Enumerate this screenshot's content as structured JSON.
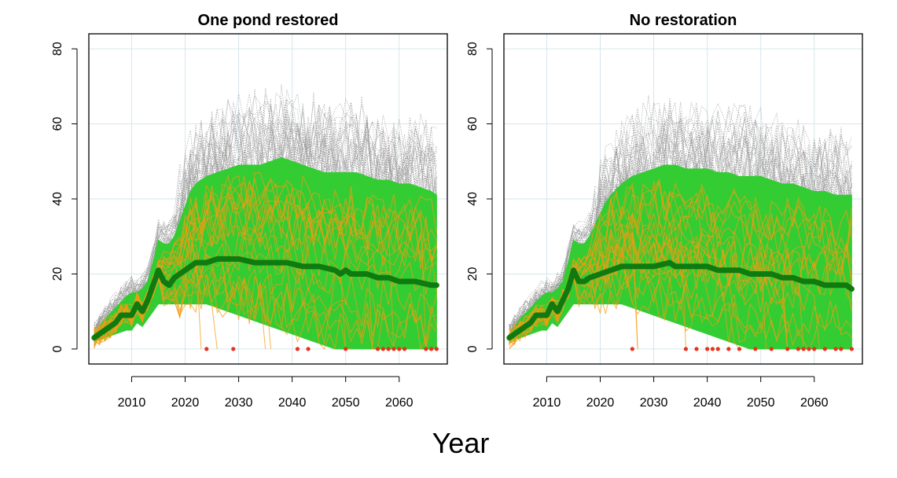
{
  "figure": {
    "xlabel": "Year",
    "colors": {
      "band": "#33cc33",
      "median": "#0f7a0f",
      "gray_traj": "#9a9a9a",
      "orange_traj": "#f39c12",
      "extinct_marker": "#e8321e",
      "grid": "#d6e6ec"
    }
  },
  "chart_data": [
    {
      "type": "line",
      "title": "One pond restored",
      "xlabel": "",
      "ylabel": "",
      "xlim": [
        2002,
        2069
      ],
      "ylim": [
        -4,
        84
      ],
      "x_ticks": [
        2010,
        2020,
        2030,
        2040,
        2050,
        2060
      ],
      "y_ticks": [
        0,
        20,
        40,
        60,
        80
      ],
      "grid": true,
      "median": {
        "x": [
          2003,
          2005,
          2007,
          2008,
          2009,
          2010,
          2011,
          2012,
          2013,
          2014,
          2015,
          2016,
          2017,
          2018,
          2020,
          2022,
          2024,
          2026,
          2028,
          2030,
          2033,
          2036,
          2039,
          2042,
          2045,
          2048,
          2049,
          2050,
          2051,
          2054,
          2056,
          2058,
          2060,
          2063,
          2066,
          2067
        ],
        "y": [
          3,
          5,
          7,
          9,
          9,
          9,
          12,
          10,
          13,
          17,
          21,
          18,
          17,
          19,
          21,
          23,
          23,
          24,
          24,
          24,
          23,
          23,
          23,
          22,
          22,
          21,
          20,
          21,
          20,
          20,
          19,
          19,
          18,
          18,
          17,
          17
        ]
      },
      "band": {
        "x": [
          2003,
          2005,
          2007,
          2009,
          2010,
          2011,
          2012,
          2013,
          2014,
          2015,
          2016,
          2017,
          2018,
          2019,
          2020,
          2021,
          2022,
          2024,
          2026,
          2028,
          2030,
          2032,
          2034,
          2036,
          2038,
          2040,
          2042,
          2044,
          2046,
          2048,
          2050,
          2052,
          2054,
          2056,
          2058,
          2060,
          2062,
          2064,
          2066,
          2067
        ],
        "upper": [
          4,
          8,
          11,
          14,
          15,
          15,
          16,
          18,
          23,
          29,
          28,
          28,
          30,
          34,
          38,
          42,
          44,
          46,
          47,
          48,
          49,
          49,
          49,
          50,
          51,
          50,
          49,
          48,
          47,
          47,
          47,
          47,
          46,
          45,
          45,
          44,
          44,
          43,
          42,
          41
        ],
        "lower": [
          2,
          3,
          4,
          5,
          5,
          7,
          6,
          8,
          10,
          12,
          12,
          12,
          12,
          12,
          12,
          12,
          12,
          12,
          11,
          10,
          9,
          8,
          7,
          6,
          5,
          4,
          3,
          2,
          1,
          0,
          0,
          0,
          0,
          0,
          0,
          0,
          0,
          0,
          0,
          0
        ]
      },
      "extinctions": [
        2024,
        2029,
        2041,
        2043,
        2050,
        2056,
        2057,
        2058,
        2059,
        2060,
        2061,
        2065,
        2066,
        2067
      ]
    },
    {
      "type": "line",
      "title": "No restoration",
      "xlabel": "",
      "ylabel": "",
      "xlim": [
        2002,
        2069
      ],
      "ylim": [
        -4,
        84
      ],
      "x_ticks": [
        2010,
        2020,
        2030,
        2040,
        2050,
        2060
      ],
      "y_ticks": [
        0,
        20,
        40,
        60,
        80
      ],
      "grid": true,
      "median": {
        "x": [
          2003,
          2005,
          2007,
          2008,
          2009,
          2010,
          2011,
          2012,
          2013,
          2014,
          2015,
          2016,
          2017,
          2018,
          2020,
          2022,
          2024,
          2026,
          2028,
          2030,
          2033,
          2034,
          2037,
          2040,
          2042,
          2044,
          2046,
          2048,
          2050,
          2052,
          2054,
          2056,
          2058,
          2060,
          2062,
          2064,
          2066,
          2067
        ],
        "y": [
          3,
          5,
          7,
          9,
          9,
          9,
          12,
          10,
          13,
          16,
          21,
          18,
          18,
          19,
          20,
          21,
          22,
          22,
          22,
          22,
          23,
          22,
          22,
          22,
          21,
          21,
          21,
          20,
          20,
          20,
          19,
          19,
          18,
          18,
          17,
          17,
          17,
          16
        ]
      },
      "band": {
        "x": [
          2003,
          2005,
          2007,
          2009,
          2010,
          2011,
          2012,
          2013,
          2014,
          2015,
          2016,
          2017,
          2018,
          2019,
          2020,
          2021,
          2022,
          2024,
          2026,
          2028,
          2030,
          2032,
          2034,
          2036,
          2038,
          2040,
          2042,
          2044,
          2046,
          2048,
          2050,
          2052,
          2054,
          2056,
          2058,
          2060,
          2062,
          2064,
          2066,
          2067
        ],
        "upper": [
          4,
          8,
          11,
          14,
          15,
          15,
          16,
          18,
          23,
          29,
          28,
          28,
          30,
          33,
          36,
          39,
          41,
          44,
          46,
          47,
          48,
          49,
          49,
          48,
          48,
          48,
          47,
          47,
          46,
          46,
          46,
          45,
          44,
          44,
          43,
          42,
          42,
          41,
          41,
          41
        ],
        "lower": [
          2,
          3,
          4,
          5,
          5,
          7,
          6,
          8,
          10,
          12,
          12,
          12,
          12,
          12,
          12,
          12,
          12,
          12,
          11,
          10,
          9,
          8,
          7,
          6,
          5,
          4,
          3,
          2,
          1,
          0,
          0,
          0,
          0,
          0,
          0,
          0,
          0,
          0,
          0,
          0
        ]
      },
      "extinctions": [
        2026,
        2036,
        2038,
        2040,
        2041,
        2042,
        2044,
        2046,
        2049,
        2052,
        2055,
        2057,
        2058,
        2059,
        2060,
        2062,
        2064,
        2065,
        2067
      ]
    }
  ]
}
